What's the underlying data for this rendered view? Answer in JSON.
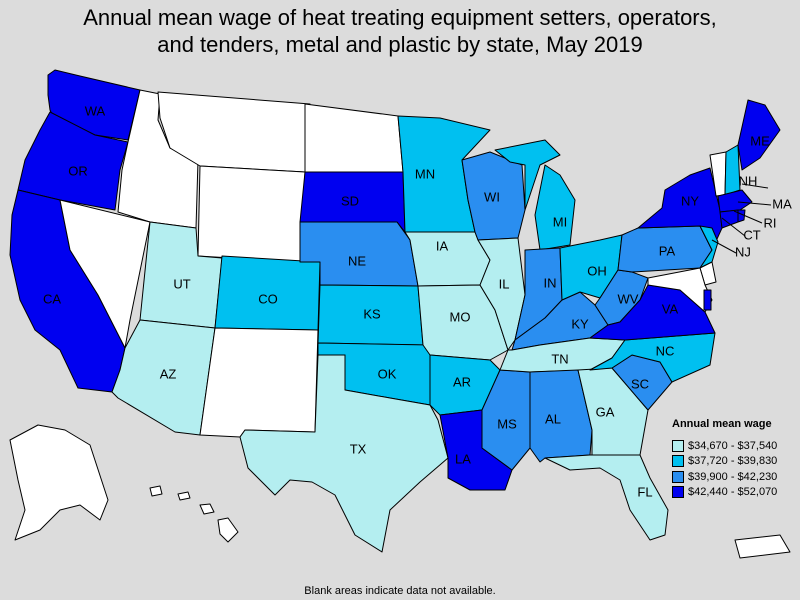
{
  "title": {
    "line1": "Annual mean wage of heat treating equipment setters, operators,",
    "line2": "and tenders, metal and plastic by state, May 2019"
  },
  "colors": {
    "blank": "#ffffff",
    "tier1": "#b4eef0",
    "tier2": "#00c0f0",
    "tier3": "#2a8ef0",
    "tier4": "#0000f0",
    "background": "#dcdcdc"
  },
  "legend": {
    "title": "Annual mean wage",
    "items": [
      {
        "label": "$34,670 - $37,540",
        "color": "#b4eef0"
      },
      {
        "label": "$37,720 - $39,830",
        "color": "#00c0f0"
      },
      {
        "label": "$39,900 - $42,230",
        "color": "#2a8ef0"
      },
      {
        "label": "$42,440 - $52,070",
        "color": "#0000f0"
      }
    ]
  },
  "states": {
    "WA": {
      "label": "WA",
      "tier": 4
    },
    "OR": {
      "label": "OR",
      "tier": 4
    },
    "CA": {
      "label": "CA",
      "tier": 4
    },
    "ID": {
      "label": "",
      "tier": 0
    },
    "NV": {
      "label": "",
      "tier": 0
    },
    "MT": {
      "label": "",
      "tier": 0
    },
    "WY": {
      "label": "",
      "tier": 0
    },
    "UT": {
      "label": "UT",
      "tier": 1
    },
    "AZ": {
      "label": "AZ",
      "tier": 1
    },
    "CO": {
      "label": "CO",
      "tier": 2
    },
    "NM": {
      "label": "",
      "tier": 0
    },
    "ND": {
      "label": "",
      "tier": 0
    },
    "SD": {
      "label": "SD",
      "tier": 4
    },
    "NE": {
      "label": "NE",
      "tier": 3
    },
    "KS": {
      "label": "KS",
      "tier": 2
    },
    "OK": {
      "label": "OK",
      "tier": 2
    },
    "TX": {
      "label": "TX",
      "tier": 1
    },
    "MN": {
      "label": "MN",
      "tier": 2
    },
    "IA": {
      "label": "IA",
      "tier": 1
    },
    "MO": {
      "label": "MO",
      "tier": 1
    },
    "AR": {
      "label": "AR",
      "tier": 2
    },
    "LA": {
      "label": "LA",
      "tier": 4
    },
    "WI": {
      "label": "WI",
      "tier": 3
    },
    "IL": {
      "label": "IL",
      "tier": 1
    },
    "MS": {
      "label": "MS",
      "tier": 3
    },
    "MI": {
      "label": "MI",
      "tier": 2
    },
    "IN": {
      "label": "IN",
      "tier": 3
    },
    "KY": {
      "label": "KY",
      "tier": 3
    },
    "TN": {
      "label": "TN",
      "tier": 1
    },
    "AL": {
      "label": "AL",
      "tier": 3
    },
    "OH": {
      "label": "OH",
      "tier": 2
    },
    "WV": {
      "label": "WV",
      "tier": 3
    },
    "GA": {
      "label": "GA",
      "tier": 1
    },
    "FL": {
      "label": "FL",
      "tier": 1
    },
    "SC": {
      "label": "SC",
      "tier": 3
    },
    "NC": {
      "label": "NC",
      "tier": 2
    },
    "VA": {
      "label": "VA",
      "tier": 4
    },
    "PA": {
      "label": "PA",
      "tier": 3
    },
    "NY": {
      "label": "NY",
      "tier": 4
    },
    "VT": {
      "label": "",
      "tier": 0
    },
    "NH": {
      "label": "NH",
      "tier": 2
    },
    "ME": {
      "label": "ME",
      "tier": 4
    },
    "MA": {
      "label": "MA",
      "tier": 4
    },
    "RI": {
      "label": "RI",
      "tier": 4
    },
    "CT": {
      "label": "CT",
      "tier": 4
    },
    "NJ": {
      "label": "NJ",
      "tier": 2
    },
    "DE": {
      "label": "",
      "tier": 0
    },
    "MD": {
      "label": "",
      "tier": 0
    },
    "DC": {
      "label": "",
      "tier": 4
    },
    "AK": {
      "label": "",
      "tier": 0
    },
    "HI": {
      "label": "",
      "tier": 0
    },
    "PR": {
      "label": "",
      "tier": 0
    }
  },
  "footnote": "Blank areas indicate data not available."
}
